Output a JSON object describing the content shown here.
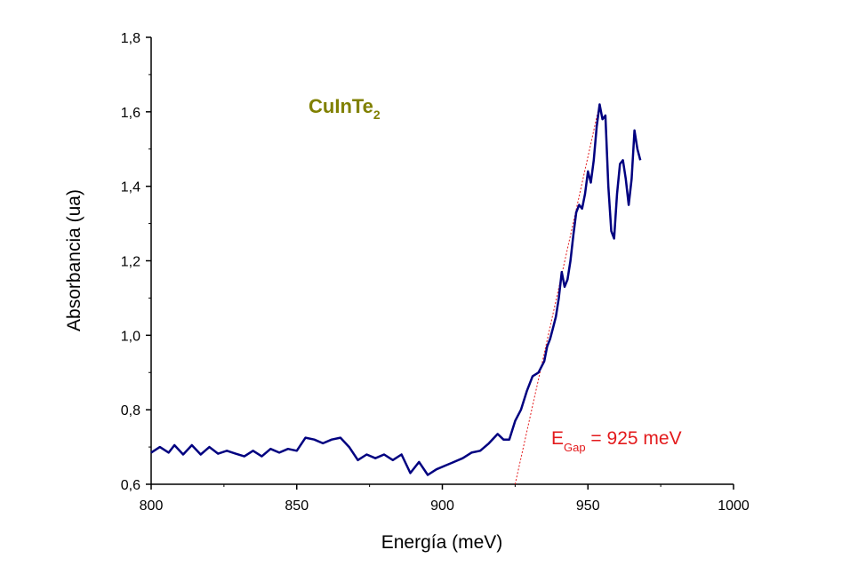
{
  "chart_data": {
    "type": "line",
    "xlabel": "Energía (meV)",
    "ylabel": "Absorbancia (ua)",
    "xlim": [
      800,
      1000
    ],
    "ylim": [
      0.6,
      1.8
    ],
    "x_ticks": [
      "800",
      "850",
      "900",
      "950",
      "1000"
    ],
    "y_ticks": [
      "0,6",
      "0,8",
      "1,0",
      "1,2",
      "1,4",
      "1,6",
      "1,8"
    ],
    "grid": false,
    "annotation_sample": {
      "main": "CuInTe",
      "sub": "2",
      "color": "#808000"
    },
    "annotation_gap": {
      "main": "E",
      "sub": "Gap",
      "rest": " = 925 meV",
      "color": "#e31a1c"
    },
    "series": [
      {
        "color": "#000080",
        "x": [
          800,
          803,
          806,
          808,
          811,
          814,
          817,
          820,
          823,
          826,
          829,
          832,
          835,
          838,
          841,
          844,
          847,
          850,
          853,
          856,
          859,
          862,
          865,
          868,
          871,
          874,
          877,
          880,
          883,
          886,
          889,
          892,
          895,
          898,
          901,
          904,
          907,
          910,
          913,
          916,
          919,
          921,
          923,
          925,
          927,
          929,
          931,
          933,
          935,
          936,
          937,
          938,
          939,
          940,
          941,
          942,
          943,
          944,
          945,
          946,
          947,
          948,
          949,
          950,
          951,
          952,
          953,
          954,
          955,
          956,
          957,
          958,
          959,
          960,
          961,
          962,
          963,
          964,
          965,
          966,
          967,
          968
        ],
        "y": [
          0.685,
          0.7,
          0.685,
          0.705,
          0.68,
          0.705,
          0.68,
          0.7,
          0.682,
          0.69,
          0.682,
          0.675,
          0.69,
          0.675,
          0.695,
          0.685,
          0.695,
          0.69,
          0.725,
          0.72,
          0.71,
          0.72,
          0.725,
          0.7,
          0.665,
          0.68,
          0.67,
          0.68,
          0.665,
          0.68,
          0.63,
          0.66,
          0.625,
          0.64,
          0.65,
          0.66,
          0.67,
          0.685,
          0.69,
          0.71,
          0.735,
          0.72,
          0.72,
          0.77,
          0.8,
          0.85,
          0.89,
          0.9,
          0.93,
          0.97,
          0.99,
          1.02,
          1.05,
          1.1,
          1.17,
          1.13,
          1.15,
          1.2,
          1.27,
          1.33,
          1.35,
          1.34,
          1.38,
          1.44,
          1.41,
          1.47,
          1.56,
          1.62,
          1.58,
          1.59,
          1.4,
          1.28,
          1.26,
          1.38,
          1.46,
          1.47,
          1.42,
          1.35,
          1.42,
          1.55,
          1.5,
          1.47
        ]
      }
    ],
    "fit_line": {
      "color": "#e31a1c",
      "x": [
        925,
        954
      ],
      "y": [
        0.6,
        1.62
      ]
    }
  }
}
